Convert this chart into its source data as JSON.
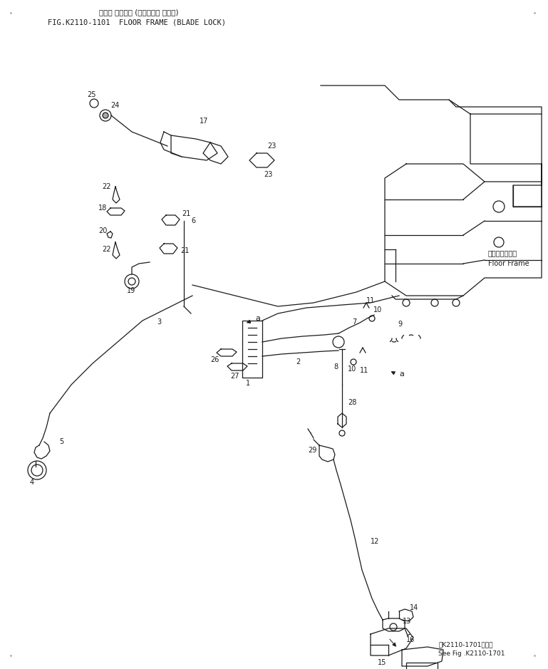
{
  "title_jp": "フロア フレーム (ブレード・ ロック)",
  "title_en": "FIG.K2110-1101  FLOOR FRAME (BLADE LOCK)",
  "floor_frame_jp": "フロアフレーム",
  "floor_frame_en": "Floor Frame",
  "see_fig_jp": "第K2110-1701図参照",
  "see_fig_en": "See Fig .K2110-1701",
  "bg_color": "#ffffff",
  "line_color": "#1a1a1a"
}
